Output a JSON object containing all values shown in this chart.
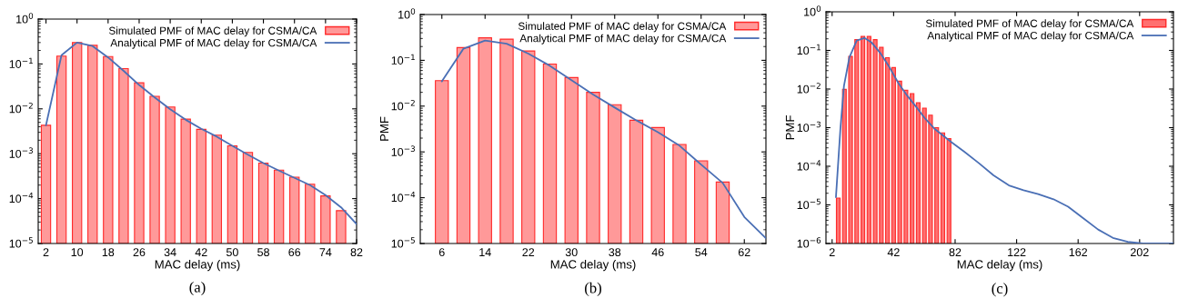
{
  "chart_data": [
    {
      "type": "bar",
      "xlabel": "MAC delay (ms)",
      "log": true,
      "legend": "top right",
      "annotations": [
        "(a)"
      ],
      "xlim": [
        0,
        82
      ],
      "xticks": [
        2,
        10,
        18,
        26,
        34,
        42,
        50,
        58,
        66,
        74,
        82
      ],
      "ylim": [
        1e-05,
        1
      ],
      "yticks": [
        {
          "value": 1e-05,
          "label": "10$^{−5}$"
        },
        {
          "value": 0.0001,
          "label": "10$^{−4}$"
        },
        {
          "value": 0.001,
          "label": "10$^{−3}$"
        },
        {
          "value": 0.01,
          "label": "10$^{−2}$"
        },
        {
          "value": 0.1,
          "label": "10$^{−1}$"
        },
        {
          "value": 1,
          "label": "10$^{0}$"
        }
      ],
      "series": [
        {
          "name": "Simulated PMF of MAC delay for CSMA/CA",
          "color": "#ff9999",
          "x": [
            2,
            6,
            10,
            14,
            18,
            22,
            26,
            30,
            34,
            38,
            42,
            46,
            50,
            54,
            58,
            62,
            66,
            70,
            74,
            78
          ],
          "values": [
            0.0043,
            0.15,
            0.3,
            0.26,
            0.146,
            0.079,
            0.038,
            0.019,
            0.011,
            0.0059,
            0.0035,
            0.0026,
            0.0015,
            0.00107,
            0.00062,
            0.00043,
            0.0003,
            0.00021,
            0.000115,
            5.4e-05
          ]
        },
        {
          "name": "Analytical PMF of MAC delay for CSMA/CA",
          "type": "line",
          "color": "#4a6fb5",
          "x": [
            2,
            6,
            10,
            14,
            18,
            22,
            26,
            30,
            34,
            38,
            42,
            46,
            50,
            54,
            58,
            62,
            66,
            70,
            74,
            78,
            82
          ],
          "values": [
            0.0043,
            0.157,
            0.3,
            0.25,
            0.14,
            0.07,
            0.034,
            0.018,
            0.0098,
            0.0057,
            0.0036,
            0.0024,
            0.0015,
            0.00095,
            0.00062,
            0.00042,
            0.00029,
            0.0002,
            0.00012,
            6.4e-05,
            2.7e-05
          ]
        }
      ]
    },
    {
      "type": "bar",
      "xlabel": "MAC delay (ms)",
      "ylabel": "PMF",
      "log": true,
      "legend": "top right",
      "annotations": [
        "(b)"
      ],
      "xlim": [
        2,
        66
      ],
      "xticks": [
        6,
        14,
        22,
        30,
        38,
        46,
        54,
        62
      ],
      "ylim": [
        1e-05,
        1
      ],
      "yticks": [
        {
          "value": 1e-05,
          "label": "10$^{−5}$"
        },
        {
          "value": 0.0001,
          "label": "10$^{−4}$"
        },
        {
          "value": 0.001,
          "label": "10$^{−3}$"
        },
        {
          "value": 0.01,
          "label": "10$^{−2}$"
        },
        {
          "value": 0.1,
          "label": "10$^{−1}$"
        },
        {
          "value": 1,
          "label": "10$^{0}$"
        }
      ],
      "series": [
        {
          "name": "Simulated PMF of MAC delay for CSMA/CA",
          "color": "#ff9999",
          "x": [
            6,
            10,
            14,
            18,
            22,
            26,
            30,
            34,
            38,
            42,
            46,
            50,
            54,
            58
          ],
          "values": [
            0.036,
            0.19,
            0.31,
            0.29,
            0.16,
            0.083,
            0.042,
            0.02,
            0.0107,
            0.0049,
            0.0034,
            0.00145,
            0.00064,
            0.00022
          ]
        },
        {
          "name": "Analytical PMF of MAC delay for CSMA/CA",
          "type": "line",
          "color": "#4a6fb5",
          "x": [
            6,
            10,
            14,
            18,
            22,
            26,
            30,
            34,
            38,
            42,
            46,
            50,
            54,
            58,
            62,
            66
          ],
          "values": [
            0.035,
            0.18,
            0.27,
            0.23,
            0.14,
            0.076,
            0.037,
            0.018,
            0.0093,
            0.0049,
            0.0027,
            0.00137,
            0.00053,
            0.00021,
            3.8e-05,
            1.3e-05
          ]
        }
      ]
    },
    {
      "type": "bar",
      "xlabel": "MAC delay (ms)",
      "ylabel": "PMF",
      "log": true,
      "legend": "top right",
      "annotations": [
        "(c)"
      ],
      "xlim": [
        -2,
        224
      ],
      "xticks": [
        2,
        42,
        82,
        122,
        162,
        202
      ],
      "ylim": [
        1e-06,
        1
      ],
      "yticks": [
        {
          "value": 1e-06,
          "label": "10$^{−6}$"
        },
        {
          "value": 1e-05,
          "label": "10$^{−5}$"
        },
        {
          "value": 0.0001,
          "label": "10$^{−4}$"
        },
        {
          "value": 0.001,
          "label": "10$^{−3}$"
        },
        {
          "value": 0.01,
          "label": "10$^{−2}$"
        },
        {
          "value": 0.1,
          "label": "10$^{−1}$"
        },
        {
          "value": 1,
          "label": "10$^{0}$"
        }
      ],
      "series": [
        {
          "name": "Simulated PMF of MAC delay for CSMA/CA",
          "color": "#ff7070",
          "x": [
            6,
            10,
            14,
            18,
            22,
            26,
            30,
            34,
            38,
            42,
            46,
            50,
            54,
            58,
            62,
            66,
            70,
            74,
            78
          ],
          "values": [
            1.5e-05,
            0.0098,
            0.07,
            0.19,
            0.23,
            0.23,
            0.19,
            0.12,
            0.065,
            0.036,
            0.016,
            0.0093,
            0.0076,
            0.0044,
            0.0032,
            0.0021,
            0.001,
            0.00073,
            0.00052
          ]
        },
        {
          "name": "Analytical PMF of MAC delay for CSMA/CA",
          "type": "line",
          "color": "#4a6fb5",
          "x": [
            4.5,
            7.4,
            9.7,
            13.2,
            18,
            23,
            27.7,
            33.6,
            39.4,
            45.2,
            51,
            56.8,
            62.6,
            68.4,
            74.2,
            80,
            87.8,
            97.5,
            107,
            117,
            126.5,
            136,
            146,
            155.5,
            165,
            175,
            184.6,
            194.3,
            204,
            224
          ],
          "values": [
            1.6e-05,
            0.00095,
            0.012,
            0.065,
            0.18,
            0.21,
            0.16,
            0.083,
            0.036,
            0.014,
            0.0066,
            0.0034,
            0.0017,
            0.00095,
            0.00062,
            0.00041,
            0.00024,
            0.00012,
            5.8e-05,
            3.2e-05,
            2.4e-05,
            1.9e-05,
            1.4e-05,
            9e-06,
            4.6e-06,
            2.3e-06,
            1.4e-06,
            1.1e-06,
            1e-06,
            1e-06
          ]
        }
      ]
    }
  ]
}
